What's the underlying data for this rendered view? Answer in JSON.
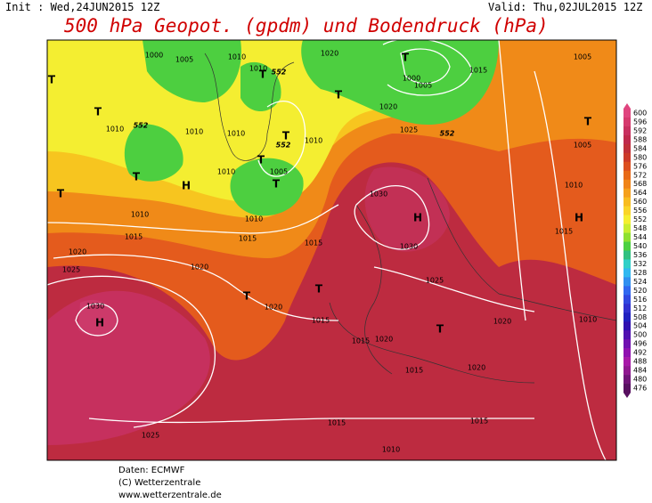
{
  "header": {
    "init": "Init : Wed,24JUN2015 12Z",
    "valid": "Valid: Thu,02JUL2015 12Z",
    "title": "500 hPa Geopot. (gpdm) und Bodendruck (hPa)"
  },
  "legend": {
    "levels": [
      600,
      596,
      592,
      588,
      584,
      580,
      576,
      572,
      568,
      564,
      560,
      556,
      552,
      548,
      544,
      540,
      536,
      532,
      528,
      524,
      520,
      516,
      512,
      508,
      504,
      500,
      496,
      492,
      488,
      484,
      480,
      476
    ],
    "colors": [
      "#e0457f",
      "#d63a6e",
      "#c83060",
      "#bf2a4d",
      "#c0303a",
      "#cc3a2a",
      "#dc4f20",
      "#e86a18",
      "#f08418",
      "#f5a01c",
      "#f8bc20",
      "#fad528",
      "#f5ef30",
      "#c8ee30",
      "#8ee030",
      "#4cd040",
      "#30c080",
      "#30d0c8",
      "#30b8f0",
      "#3090f0",
      "#3068f0",
      "#3048e0",
      "#3030d0",
      "#2020c0",
      "#3010b0",
      "#5010b0",
      "#7010b0",
      "#9010b0",
      "#a818a8",
      "#901890",
      "#701478",
      "#581060"
    ]
  },
  "map": {
    "isobar_labels": [
      "1000",
      "1005",
      "1010",
      "1010",
      "1020",
      "1000",
      "1005",
      "1015",
      "1005",
      "1020",
      "1025",
      "1010",
      "1010",
      "1010",
      "1010",
      "1005",
      "1010",
      "1005",
      "1010",
      "1010",
      "1010",
      "1015",
      "1015",
      "1015",
      "1030",
      "1030",
      "1015",
      "1020",
      "1025",
      "1020",
      "1020",
      "1025",
      "1030",
      "1015",
      "1020",
      "1010",
      "1015",
      "1020",
      "1015",
      "1020",
      "1015",
      "1015",
      "1025",
      "1010"
    ],
    "height_labels": [
      "552",
      "552",
      "552",
      "552"
    ],
    "centers": [
      "T",
      "T",
      "H",
      "T",
      "T",
      "T",
      "T",
      "T",
      "T",
      "T",
      "T",
      "T",
      "H",
      "H",
      "T",
      "T",
      "T",
      "H"
    ]
  },
  "footer": {
    "source": "Daten: ECMWF",
    "copyright": "(C) Wetterzentrale",
    "url": "www.wetterzentrale.de"
  }
}
